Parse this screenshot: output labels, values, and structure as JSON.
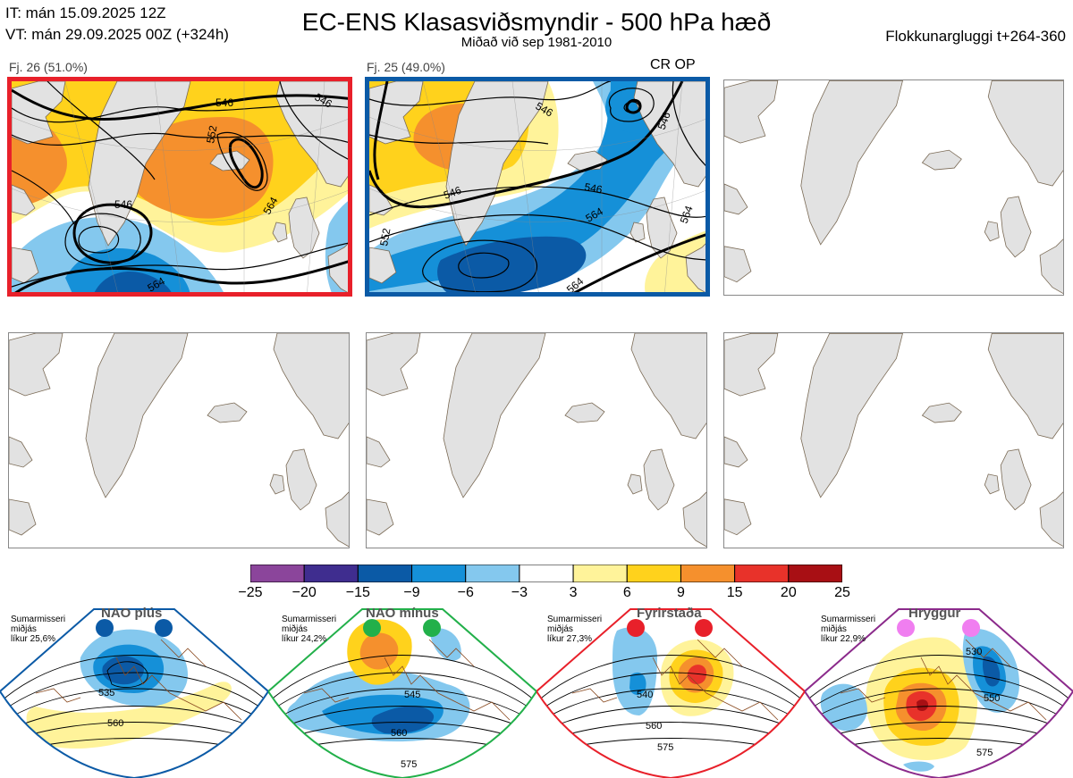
{
  "header": {
    "it": "IT: mán 15.09.2025 12Z",
    "vt": "VT: mán 29.09.2025 00Z  (+324h)",
    "title": "EC-ENS Klasasviðsmyndir - 500 hPa hæð",
    "subtitle": "Miðað við sep 1981-2010",
    "window": "Flokkunargluggi t+264-360"
  },
  "clusters": [
    {
      "label": "Fj. 26 (51.0%)",
      "members": 26,
      "percent": 51.0,
      "highlight": "#e8202a",
      "badge": "",
      "contours": [
        "546",
        "552",
        "546",
        "564",
        "564",
        "546"
      ]
    },
    {
      "label": "Fj. 25 (49.0%)",
      "members": 25,
      "percent": 49.0,
      "highlight": "#0b5aa6",
      "badge": "CR OP",
      "contours": [
        "546",
        "546",
        "546",
        "546",
        "564",
        "564",
        "552",
        "564"
      ]
    },
    {
      "label": "",
      "empty": true
    },
    {
      "label": "",
      "empty": true
    },
    {
      "label": "",
      "empty": true
    },
    {
      "label": "",
      "empty": true
    }
  ],
  "colorbar": {
    "ticks": [
      "−25",
      "−20",
      "−15",
      "−9",
      "−6",
      "−3",
      "3",
      "6",
      "9",
      "15",
      "20",
      "25"
    ],
    "colors": [
      "#8b459b",
      "#3f2d8f",
      "#0b5aa6",
      "#1590d8",
      "#84c8ee",
      "#ffffff",
      "#fff39a",
      "#ffd21c",
      "#f5902d",
      "#e8322a",
      "#a80f14"
    ]
  },
  "regimes": [
    {
      "name": "NAO plús",
      "season": "Sumarmisseri",
      "stat": "miðjás",
      "prob": "líkur 25,6%",
      "probability": 25.6,
      "dot_color": "#0b5aa6",
      "border": "#0b5aa6",
      "contours": [
        "535",
        "560"
      ]
    },
    {
      "name": "NAO mínus",
      "season": "Sumarmisseri",
      "stat": "miðjás",
      "prob": "líkur 24,2%",
      "probability": 24.2,
      "dot_color": "#22b04a",
      "border": "#22b04a",
      "contours": [
        "545",
        "560",
        "575"
      ]
    },
    {
      "name": "Fyrirstaða",
      "season": "Sumarmisseri",
      "stat": "miðjás",
      "prob": "líkur 27,3%",
      "probability": 27.3,
      "dot_color": "#e8202a",
      "border": "#e8202a",
      "contours": [
        "540",
        "560",
        "575"
      ]
    },
    {
      "name": "Hryggur",
      "season": "Sumarmisseri",
      "stat": "miðjás",
      "prob": "líkur 22,9%",
      "probability": 22.9,
      "dot_color": "#f07ef0",
      "border": "#8b2a8b",
      "contours": [
        "530",
        "550",
        "575"
      ]
    }
  ]
}
